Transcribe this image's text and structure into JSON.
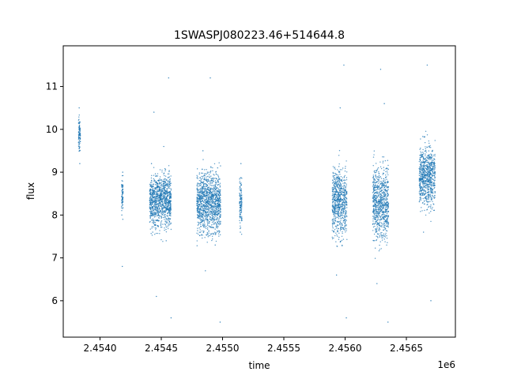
{
  "chart_data": {
    "type": "scatter",
    "title": "1SWASPJ080223.46+514644.8",
    "xlabel": "time",
    "ylabel": "flux",
    "x_offset_label": "1e6",
    "xlim": [
      2453700,
      2456900
    ],
    "ylim": [
      5.15,
      11.95
    ],
    "x_ticks": [
      {
        "value": 2454000,
        "label": "2.4540"
      },
      {
        "value": 2454500,
        "label": "2.4545"
      },
      {
        "value": 2455000,
        "label": "2.4550"
      },
      {
        "value": 2455500,
        "label": "2.4555"
      },
      {
        "value": 2456000,
        "label": "2.4560"
      },
      {
        "value": 2456500,
        "label": "2.4565"
      }
    ],
    "y_ticks": [
      {
        "value": 6,
        "label": "6"
      },
      {
        "value": 7,
        "label": "7"
      },
      {
        "value": 8,
        "label": "8"
      },
      {
        "value": 9,
        "label": "9"
      },
      {
        "value": 10,
        "label": "10"
      },
      {
        "value": 11,
        "label": "11"
      }
    ],
    "grid": false,
    "marker_color": "#1f77b4",
    "series": [
      {
        "x": [
          2453830,
          2453832,
          2453835,
          2453838,
          2454178,
          2454180,
          2454182,
          2454183,
          2454185,
          2454186,
          2454410,
          2454420,
          2454430,
          2454440,
          2454460,
          2454500,
          2454520,
          2454540,
          2454560,
          2454580,
          2454800,
          2454820,
          2454840,
          2454860,
          2454880,
          2454900,
          2454920,
          2454940,
          2454960,
          2454980,
          2455140,
          2455145,
          2455150,
          2455152,
          2455155,
          2455900,
          2455930,
          2455960,
          2455990,
          2456010,
          2456230,
          2456260,
          2456290,
          2456320,
          2456350,
          2456610,
          2456640,
          2456670,
          2456700,
          2456730
        ],
        "y": [
          10.5,
          9.5,
          9.2,
          9.9,
          8.0,
          8.7,
          6.8,
          8.4,
          9.0,
          7.9,
          8.5,
          9.2,
          7.6,
          10.4,
          6.1,
          8.2,
          9.6,
          7.4,
          11.2,
          5.6,
          8.6,
          7.6,
          9.5,
          6.7,
          8.9,
          11.2,
          8.1,
          7.3,
          9.1,
          5.5,
          8.3,
          7.6,
          9.2,
          8.7,
          7.9,
          8.4,
          6.6,
          10.5,
          11.5,
          5.6,
          8.2,
          6.4,
          11.4,
          10.6,
          5.5,
          9.3,
          7.6,
          11.5,
          6.0,
          8.7
        ]
      }
    ],
    "observing_seasons": [
      {
        "x_start": 2453825,
        "x_end": 2453840,
        "y_min": 9.2,
        "y_max": 10.5
      },
      {
        "x_start": 2454176,
        "x_end": 2454188,
        "y_min": 7.9,
        "y_max": 9.1
      },
      {
        "x_start": 2454405,
        "x_end": 2454580,
        "y_min": 7.4,
        "y_max": 9.3
      },
      {
        "x_start": 2454790,
        "x_end": 2454985,
        "y_min": 7.2,
        "y_max": 9.4
      },
      {
        "x_start": 2455138,
        "x_end": 2455158,
        "y_min": 7.5,
        "y_max": 9.2
      },
      {
        "x_start": 2455895,
        "x_end": 2456015,
        "y_min": 7.1,
        "y_max": 9.5
      },
      {
        "x_start": 2456225,
        "x_end": 2456355,
        "y_min": 7.0,
        "y_max": 9.6
      },
      {
        "x_start": 2456605,
        "x_end": 2456735,
        "y_min": 7.8,
        "y_max": 10.0
      }
    ]
  }
}
